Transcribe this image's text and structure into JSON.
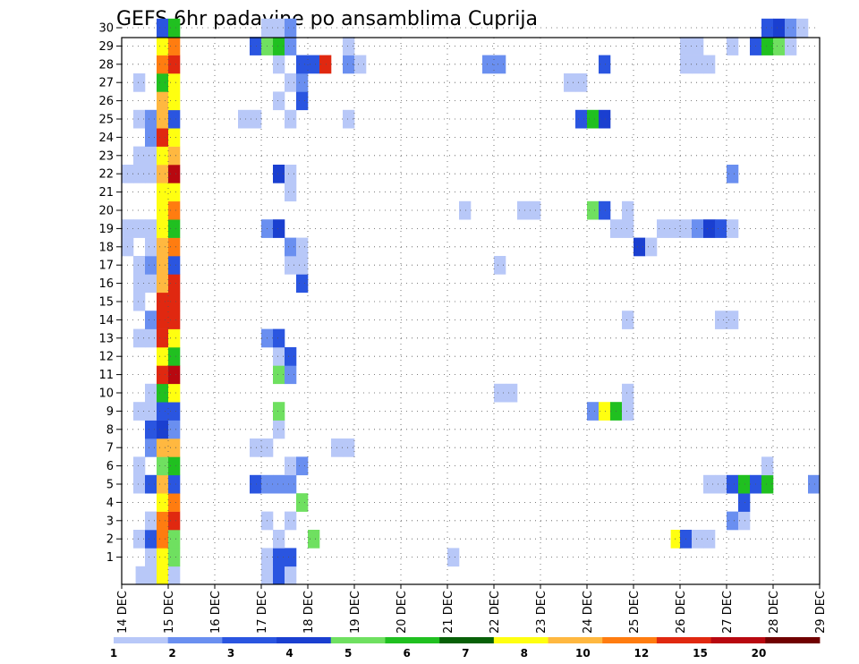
{
  "chart_data": {
    "type": "heatmap",
    "title": "GEFS 6hr padavine po ansamblima Cuprija",
    "x_ticks": [
      "14 DEC",
      "15 DEC",
      "16 DEC",
      "17 DEC",
      "18 DEC",
      "19 DEC",
      "20 DEC",
      "21 DEC",
      "22 DEC",
      "23 DEC",
      "24 DEC",
      "25 DEC",
      "26 DEC",
      "27 DEC",
      "28 DEC",
      "29 DEC"
    ],
    "y_ticks": [
      "1",
      "2",
      "3",
      "4",
      "5",
      "6",
      "7",
      "8",
      "9",
      "10",
      "11",
      "12",
      "13",
      "14",
      "15",
      "16",
      "17",
      "18",
      "19",
      "20",
      "21",
      "22",
      "23",
      "24",
      "25",
      "26",
      "27",
      "28",
      "29",
      "30"
    ],
    "grid": true,
    "colorbar": {
      "levels": [
        "1",
        "2",
        "3",
        "4",
        "5",
        "6",
        "7",
        "8",
        "10",
        "12",
        "15",
        "20"
      ],
      "colors": [
        "#b8c8f8",
        "#6a8ff0",
        "#2a55e0",
        "#1a3fd0",
        "#6fe060",
        "#20c020",
        "#086008",
        "#ffff10",
        "#ffb840",
        "#ff7c10",
        "#e02810",
        "#b80810",
        "#700000"
      ]
    },
    "cells_columns": [
      "x_day",
      "member",
      "value_mm"
    ],
    "cells": [
      [
        14.3,
        0,
        1.5
      ],
      [
        14.5,
        0,
        1.5
      ],
      [
        14.75,
        0,
        9.5
      ],
      [
        15.0,
        0,
        1.5
      ],
      [
        17.0,
        0,
        1.5
      ],
      [
        17.25,
        0,
        3.5
      ],
      [
        17.5,
        0,
        1.5
      ],
      [
        14.5,
        1,
        1.5
      ],
      [
        14.75,
        1,
        9
      ],
      [
        15.0,
        1,
        5.5
      ],
      [
        17.0,
        1,
        1.5
      ],
      [
        17.25,
        1,
        3
      ],
      [
        17.5,
        1,
        3
      ],
      [
        21.0,
        1,
        1.5
      ],
      [
        14.25,
        2,
        1.5
      ],
      [
        14.5,
        2,
        3.5
      ],
      [
        14.75,
        2,
        13
      ],
      [
        15.0,
        2,
        5.5
      ],
      [
        17.25,
        2,
        1.5
      ],
      [
        18.0,
        2,
        5.5
      ],
      [
        25.8,
        2,
        9
      ],
      [
        26.0,
        2,
        3.5
      ],
      [
        26.25,
        2,
        1.5
      ],
      [
        26.5,
        2,
        1.5
      ],
      [
        14.5,
        3,
        1.5
      ],
      [
        14.75,
        3,
        13
      ],
      [
        15.0,
        3,
        16
      ],
      [
        17.0,
        3,
        1.5
      ],
      [
        17.5,
        3,
        1.5
      ],
      [
        27.0,
        3,
        2
      ],
      [
        27.25,
        3,
        1.5
      ],
      [
        14.75,
        4,
        9
      ],
      [
        15.0,
        4,
        13
      ],
      [
        17.75,
        4,
        5.5
      ],
      [
        27.25,
        4,
        3.5
      ],
      [
        14.25,
        5,
        1.5
      ],
      [
        14.5,
        5,
        3
      ],
      [
        14.75,
        5,
        10
      ],
      [
        15.0,
        5,
        3
      ],
      [
        16.75,
        5,
        3.5
      ],
      [
        17.0,
        5,
        2
      ],
      [
        17.25,
        5,
        2
      ],
      [
        17.5,
        5,
        2
      ],
      [
        26.5,
        5,
        1.5
      ],
      [
        26.75,
        5,
        1.5
      ],
      [
        27.0,
        5,
        3.5
      ],
      [
        27.25,
        5,
        6.5
      ],
      [
        27.5,
        5,
        3
      ],
      [
        27.75,
        5,
        6.5
      ],
      [
        28.75,
        5,
        2
      ],
      [
        14.25,
        6,
        1.5
      ],
      [
        14.75,
        6,
        5.5
      ],
      [
        15.0,
        6,
        6.5
      ],
      [
        17.5,
        6,
        1.5
      ],
      [
        17.75,
        6,
        2
      ],
      [
        27.75,
        6,
        1.5
      ],
      [
        14.5,
        7,
        2
      ],
      [
        14.75,
        7,
        11
      ],
      [
        15.0,
        7,
        11
      ],
      [
        16.75,
        7,
        1.5
      ],
      [
        17.0,
        7,
        1.5
      ],
      [
        18.5,
        7,
        1.5
      ],
      [
        18.75,
        7,
        1.5
      ],
      [
        14.5,
        8,
        3.5
      ],
      [
        14.75,
        8,
        4.5
      ],
      [
        15.0,
        8,
        2
      ],
      [
        17.25,
        8,
        1.5
      ],
      [
        14.25,
        9,
        1.5
      ],
      [
        14.5,
        9,
        1.5
      ],
      [
        14.75,
        9,
        3.5
      ],
      [
        15.0,
        9,
        3.5
      ],
      [
        17.25,
        9,
        5.5
      ],
      [
        24.0,
        9,
        2
      ],
      [
        24.25,
        9,
        9
      ],
      [
        24.5,
        9,
        6.5
      ],
      [
        24.75,
        9,
        1.5
      ],
      [
        14.5,
        10,
        1.5
      ],
      [
        14.75,
        10,
        6.5
      ],
      [
        15.0,
        10,
        9
      ],
      [
        22.0,
        10,
        1.5
      ],
      [
        22.25,
        10,
        1.5
      ],
      [
        24.75,
        10,
        1.5
      ],
      [
        14.75,
        11,
        15
      ],
      [
        15.0,
        11,
        22
      ],
      [
        17.25,
        11,
        5.5
      ],
      [
        17.5,
        11,
        2
      ],
      [
        14.75,
        12,
        9.5
      ],
      [
        15.0,
        12,
        6.5
      ],
      [
        17.25,
        12,
        1.5
      ],
      [
        17.5,
        12,
        3.5
      ],
      [
        14.25,
        13,
        1.5
      ],
      [
        14.5,
        13,
        1.5
      ],
      [
        14.75,
        13,
        16
      ],
      [
        15.0,
        13,
        9.5
      ],
      [
        17.0,
        13,
        2
      ],
      [
        17.25,
        13,
        3.5
      ],
      [
        14.5,
        14,
        2
      ],
      [
        14.75,
        14,
        16
      ],
      [
        15.0,
        14,
        16
      ],
      [
        24.75,
        14,
        1.5
      ],
      [
        26.75,
        14,
        1.5
      ],
      [
        27.0,
        14,
        1.5
      ],
      [
        14.25,
        15,
        1.5
      ],
      [
        14.75,
        15,
        16
      ],
      [
        15.0,
        15,
        16
      ],
      [
        14.25,
        16,
        1.5
      ],
      [
        14.5,
        16,
        1.5
      ],
      [
        14.75,
        16,
        11
      ],
      [
        15.0,
        16,
        16
      ],
      [
        17.75,
        16,
        3.5
      ],
      [
        14.25,
        17,
        1.5
      ],
      [
        14.5,
        17,
        2
      ],
      [
        14.75,
        17,
        10
      ],
      [
        15.0,
        17,
        3.5
      ],
      [
        17.5,
        17,
        1.5
      ],
      [
        17.75,
        17,
        1.5
      ],
      [
        22.0,
        17,
        1.5
      ],
      [
        14.0,
        18,
        1.5
      ],
      [
        14.5,
        18,
        1.5
      ],
      [
        14.75,
        18,
        11
      ],
      [
        15.0,
        18,
        13
      ],
      [
        17.5,
        18,
        2
      ],
      [
        17.75,
        18,
        1.5
      ],
      [
        25.0,
        18,
        4.5
      ],
      [
        25.25,
        18,
        1.5
      ],
      [
        14.0,
        19,
        1.5
      ],
      [
        14.25,
        19,
        1.5
      ],
      [
        14.5,
        19,
        1.5
      ],
      [
        14.75,
        19,
        9.5
      ],
      [
        15.0,
        19,
        6.5
      ],
      [
        17.0,
        19,
        2
      ],
      [
        17.25,
        19,
        4.5
      ],
      [
        24.5,
        19,
        1.5
      ],
      [
        24.75,
        19,
        1.5
      ],
      [
        25.5,
        19,
        1.5
      ],
      [
        25.75,
        19,
        1.5
      ],
      [
        26.0,
        19,
        1.5
      ],
      [
        26.25,
        19,
        2
      ],
      [
        26.5,
        19,
        4.5
      ],
      [
        26.75,
        19,
        3.5
      ],
      [
        27.0,
        19,
        1.5
      ],
      [
        14.75,
        20,
        9
      ],
      [
        15.0,
        20,
        13
      ],
      [
        21.25,
        20,
        1.5
      ],
      [
        22.5,
        20,
        1.5
      ],
      [
        22.75,
        20,
        1.5
      ],
      [
        24.0,
        20,
        5.5
      ],
      [
        24.25,
        20,
        3.5
      ],
      [
        24.75,
        20,
        1.5
      ],
      [
        14.75,
        21,
        9.5
      ],
      [
        15.0,
        21,
        8
      ],
      [
        17.5,
        21,
        1.5
      ],
      [
        14.0,
        22,
        1.5
      ],
      [
        14.25,
        22,
        1.5
      ],
      [
        14.5,
        22,
        1.5
      ],
      [
        14.75,
        22,
        11
      ],
      [
        15.0,
        22,
        22
      ],
      [
        17.25,
        22,
        4.5
      ],
      [
        17.5,
        22,
        1.5
      ],
      [
        27.0,
        22,
        2
      ],
      [
        14.25,
        23,
        1.5
      ],
      [
        14.5,
        23,
        1.5
      ],
      [
        14.75,
        23,
        8
      ],
      [
        15.0,
        23,
        11
      ],
      [
        14.5,
        24,
        2
      ],
      [
        14.75,
        24,
        16
      ],
      [
        15.0,
        24,
        8
      ],
      [
        14.25,
        25,
        1.5
      ],
      [
        14.5,
        25,
        2
      ],
      [
        14.75,
        25,
        11
      ],
      [
        15.0,
        25,
        3.5
      ],
      [
        16.5,
        25,
        1.5
      ],
      [
        16.75,
        25,
        1.5
      ],
      [
        17.5,
        25,
        1.5
      ],
      [
        18.75,
        25,
        1.5
      ],
      [
        23.75,
        25,
        3.5
      ],
      [
        24.0,
        25,
        6.5
      ],
      [
        24.25,
        25,
        4.5
      ],
      [
        14.75,
        26,
        10
      ],
      [
        15.0,
        26,
        9.5
      ],
      [
        17.25,
        26,
        1.5
      ],
      [
        17.75,
        26,
        3.5
      ],
      [
        14.25,
        27,
        1.5
      ],
      [
        14.75,
        27,
        6.5
      ],
      [
        15.0,
        27,
        8
      ],
      [
        17.5,
        27,
        1.5
      ],
      [
        17.75,
        27,
        2
      ],
      [
        23.5,
        27,
        1.5
      ],
      [
        23.75,
        27,
        1.5
      ],
      [
        14.75,
        28,
        13
      ],
      [
        15.0,
        28,
        15
      ],
      [
        17.25,
        28,
        1.5
      ],
      [
        17.75,
        28,
        3.5
      ],
      [
        18.0,
        28,
        3.5
      ],
      [
        18.25,
        28,
        15
      ],
      [
        18.75,
        28,
        2
      ],
      [
        19.0,
        28,
        1.5
      ],
      [
        21.75,
        28,
        2
      ],
      [
        22.0,
        28,
        2
      ],
      [
        24.25,
        28,
        3.5
      ],
      [
        26.0,
        28,
        1.5
      ],
      [
        26.25,
        28,
        1.5
      ],
      [
        26.5,
        28,
        1.5
      ],
      [
        14.75,
        29,
        9.5
      ],
      [
        15.0,
        29,
        13
      ],
      [
        16.75,
        29,
        3.5
      ],
      [
        17.0,
        29,
        5.5
      ],
      [
        17.25,
        29,
        6.5
      ],
      [
        17.5,
        29,
        2
      ],
      [
        18.75,
        29,
        1.5
      ],
      [
        26.0,
        29,
        1.5
      ],
      [
        26.25,
        29,
        1.5
      ],
      [
        27.0,
        29,
        1.5
      ],
      [
        27.5,
        29,
        3.5
      ],
      [
        27.75,
        29,
        6.5
      ],
      [
        28.0,
        29,
        5.5
      ],
      [
        28.25,
        29,
        1.5
      ],
      [
        14.75,
        30,
        3.5
      ],
      [
        15.0,
        30,
        6.5
      ],
      [
        17.0,
        30,
        1.5
      ],
      [
        17.25,
        30,
        1.5
      ],
      [
        17.5,
        30,
        2
      ],
      [
        27.75,
        30,
        3.5
      ],
      [
        28.0,
        30,
        4.5
      ],
      [
        28.25,
        30,
        2
      ],
      [
        28.5,
        30,
        1.5
      ]
    ]
  }
}
